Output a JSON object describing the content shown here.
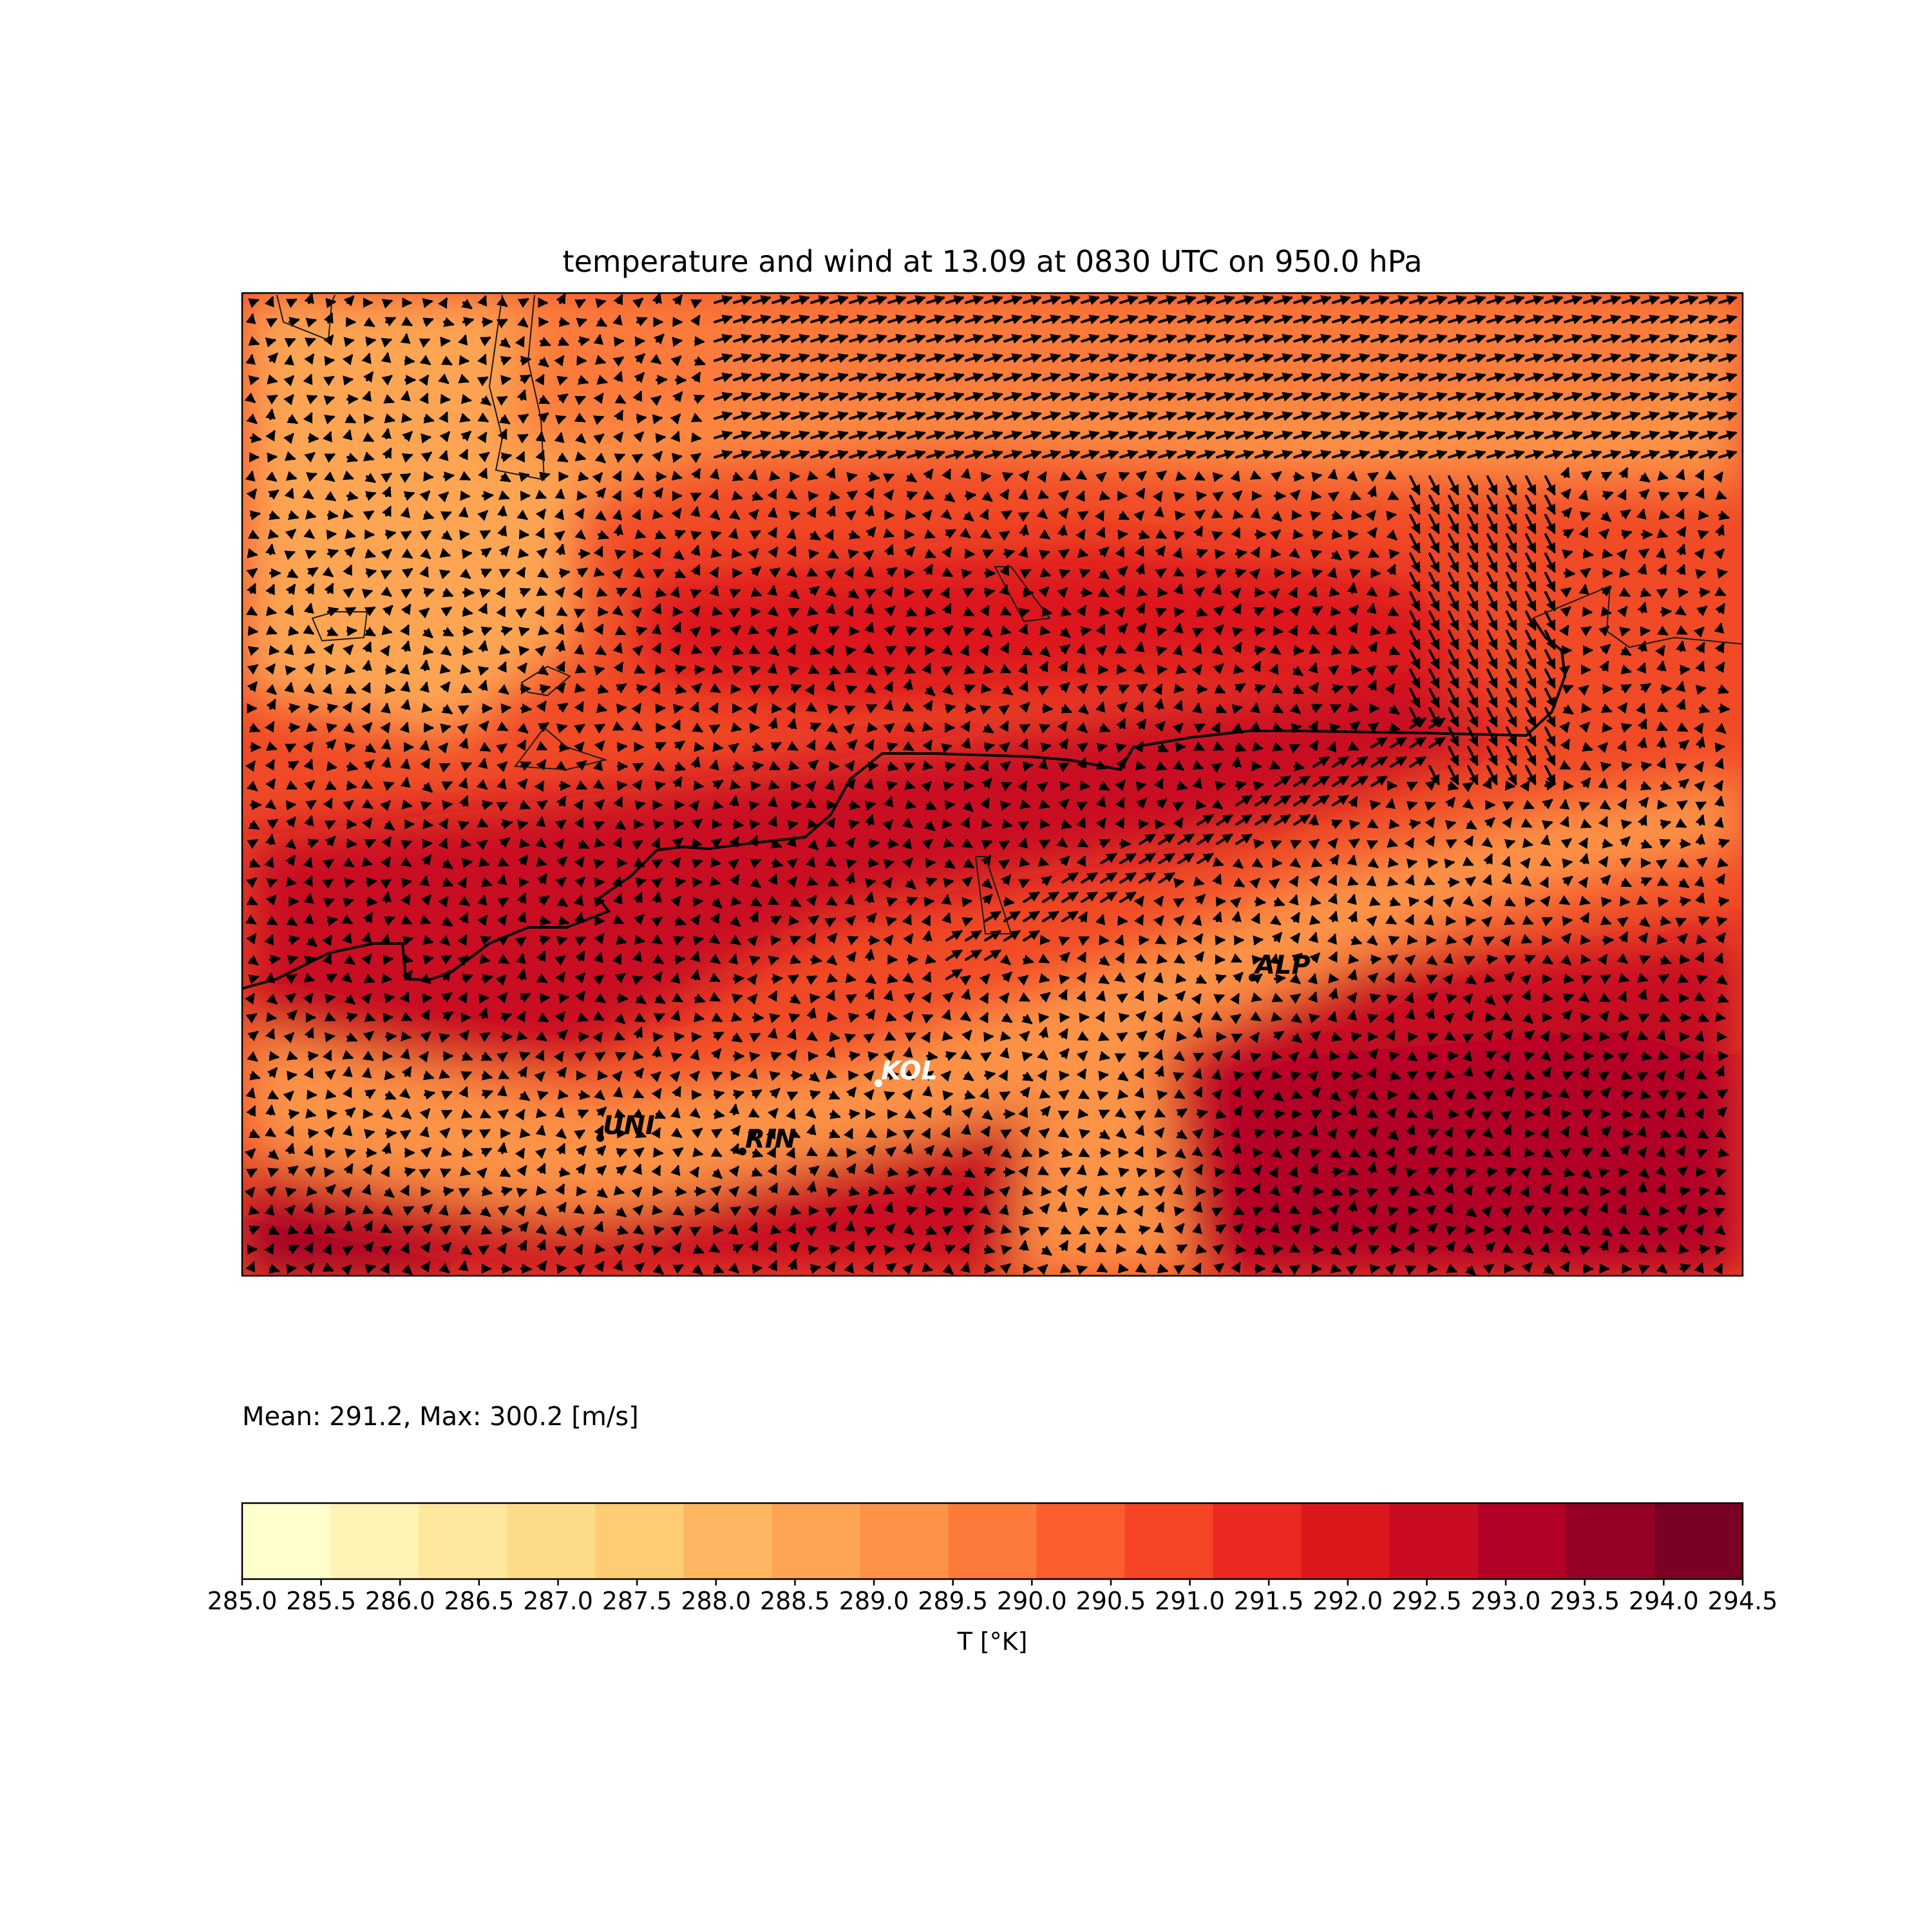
{
  "title": "temperature and wind at 13.09 at 0830 UTC on 950.0 hPa",
  "stats": "Mean: 291.2, Max: 300.2 [m/s]",
  "colorbar": {
    "label": "T [°K]",
    "ticks": [
      "285.0",
      "285.5",
      "286.0",
      "286.5",
      "287.0",
      "287.5",
      "288.0",
      "288.5",
      "289.0",
      "289.5",
      "290.0",
      "290.5",
      "291.0",
      "291.5",
      "292.0",
      "292.5",
      "293.0",
      "293.5",
      "294.0",
      "294.5"
    ],
    "colors": [
      "#ffffcc",
      "#fff3b5",
      "#ffe89e",
      "#fedb88",
      "#fecc73",
      "#fdb762",
      "#fda552",
      "#fd9346",
      "#fc7a3a",
      "#fc5e2d",
      "#f64426",
      "#ea2920",
      "#dc171c",
      "#c90c22",
      "#b30026",
      "#970026",
      "#7b0026"
    ]
  },
  "map": {
    "cities": [
      {
        "name": "UNI",
        "color": "#000000"
      },
      {
        "name": "RIN",
        "color": "#000000"
      },
      {
        "name": "KOL",
        "color": "#ffffff"
      },
      {
        "name": "ALP",
        "color": "#000000"
      }
    ]
  }
}
